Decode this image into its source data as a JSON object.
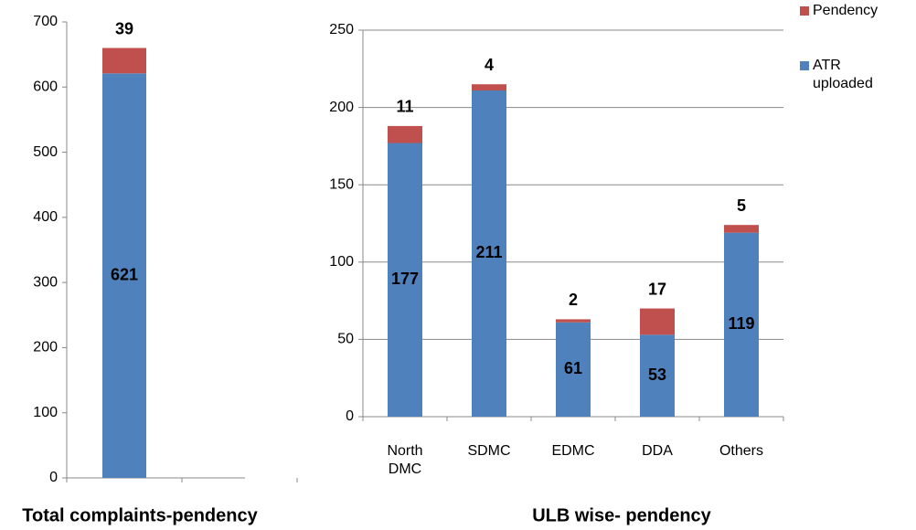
{
  "chart_data": [
    {
      "type": "bar",
      "stacked": true,
      "title": "Total complaints-pendency",
      "categories": [
        null
      ],
      "series": [
        {
          "name": "ATR uploaded",
          "color": "#4f81bd",
          "values": [
            621
          ]
        },
        {
          "name": "Pendency",
          "color": "#c0504d",
          "values": [
            39
          ]
        }
      ],
      "ylim": [
        0,
        700
      ],
      "yticks": [
        0,
        100,
        200,
        300,
        400,
        500,
        600,
        700
      ],
      "grid": false
    },
    {
      "type": "bar",
      "stacked": true,
      "title": "ULB wise- pendency",
      "categories": [
        "North DMC",
        "SDMC",
        "EDMC",
        "DDA",
        "Others"
      ],
      "series": [
        {
          "name": "ATR uploaded",
          "color": "#4f81bd",
          "values": [
            177,
            211,
            61,
            53,
            119
          ]
        },
        {
          "name": "Pendency",
          "color": "#c0504d",
          "values": [
            11,
            4,
            2,
            17,
            5
          ]
        }
      ],
      "ylim": [
        0,
        250
      ],
      "yticks": [
        0,
        50,
        100,
        150,
        200,
        250
      ],
      "grid": true,
      "legend": "upper right"
    }
  ]
}
